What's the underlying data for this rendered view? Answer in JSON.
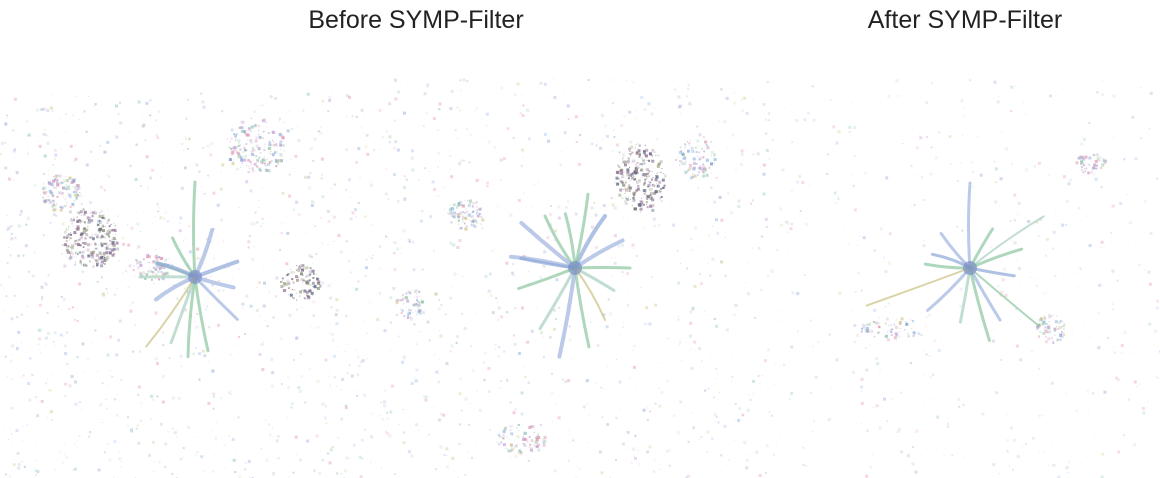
{
  "labels": {
    "before": "Before SYMP-Filter",
    "after": "After SYMP-Filter"
  },
  "panels": [
    {
      "id": "before-map-1"
    },
    {
      "id": "before-map-2"
    },
    {
      "id": "after-map"
    }
  ]
}
